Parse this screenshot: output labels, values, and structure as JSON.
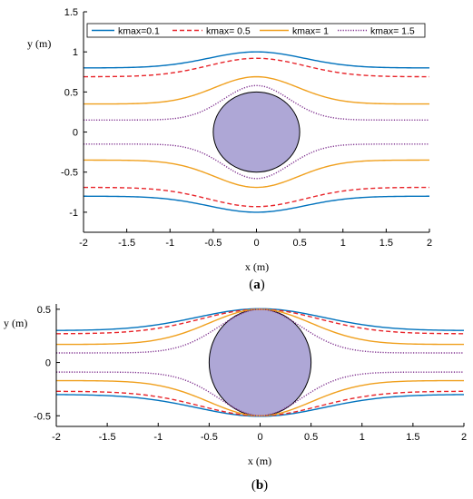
{
  "chart_data": [
    {
      "type": "line",
      "caption_prefix": "(",
      "caption_letter": "a",
      "caption_suffix": ")",
      "xlabel": "x (m)",
      "ylabel": "y (m)",
      "xlim": [
        -2,
        2
      ],
      "ylim": [
        -1.25,
        1.5
      ],
      "xticks": [
        -2,
        -1.5,
        -1,
        -0.5,
        0,
        0.5,
        1,
        1.5,
        2
      ],
      "yticks": [
        -1,
        -0.5,
        0,
        0.5,
        1,
        1.5
      ],
      "legend_position": "top",
      "obstacle": {
        "shape": "circle",
        "center": [
          0,
          0
        ],
        "radius": 0.5,
        "color": "#aea7d6"
      },
      "series": [
        {
          "name": "kmax=0.1",
          "color": "#0072bd",
          "style": "solid",
          "upper": {
            "far": 0.8,
            "peak": 1.0,
            "width": 0.55
          },
          "lower": {
            "far": -0.8,
            "peak": -1.0,
            "width": 0.55
          }
        },
        {
          "name": "kmax= 0.5",
          "color": "#e8252b",
          "style": "dashed",
          "upper": {
            "far": 0.69,
            "peak": 0.92,
            "width": 0.55
          },
          "lower": {
            "far": -0.69,
            "peak": -0.93,
            "width": 0.55
          }
        },
        {
          "name": "kmax= 1",
          "color": "#f0a01e",
          "style": "solid",
          "upper": {
            "far": 0.35,
            "peak": 0.69,
            "width": 0.48
          },
          "lower": {
            "far": -0.35,
            "peak": -0.69,
            "width": 0.48
          }
        },
        {
          "name": "kmax= 1.5",
          "color": "#7e2f8e",
          "style": "dotted",
          "upper": {
            "far": 0.15,
            "peak": 0.58,
            "width": 0.38
          },
          "lower": {
            "far": -0.15,
            "peak": -0.58,
            "width": 0.38
          }
        }
      ]
    },
    {
      "type": "line",
      "caption_prefix": "(",
      "caption_letter": "b",
      "caption_suffix": ")",
      "xlabel": "x (m)",
      "ylabel": "y (m)",
      "xlim": [
        -2,
        2
      ],
      "ylim": [
        -0.6,
        0.55
      ],
      "xticks": [
        -2,
        -1.5,
        -1,
        -0.5,
        0,
        0.5,
        1,
        1.5,
        2
      ],
      "yticks": [
        -0.5,
        0,
        0.5
      ],
      "obstacle": {
        "shape": "circle",
        "center": [
          0,
          0
        ],
        "radius": 0.5,
        "color": "#aea7d6"
      },
      "series": [
        {
          "name": "kmax=0.1",
          "color": "#0072bd",
          "style": "solid",
          "upper": {
            "far": 0.3,
            "peak": 0.505,
            "width": 0.62
          },
          "lower": {
            "far": -0.3,
            "peak": -0.505,
            "width": 0.62
          }
        },
        {
          "name": "kmax= 0.5",
          "color": "#e8252b",
          "style": "dashed",
          "upper": {
            "far": 0.27,
            "peak": 0.5,
            "width": 0.58
          },
          "lower": {
            "far": -0.27,
            "peak": -0.5,
            "width": 0.58
          }
        },
        {
          "name": "kmax= 1",
          "color": "#f0a01e",
          "style": "solid",
          "upper": {
            "far": 0.17,
            "peak": 0.5,
            "width": 0.5
          },
          "lower": {
            "far": -0.17,
            "peak": -0.5,
            "width": 0.5
          }
        },
        {
          "name": "kmax= 1.5",
          "color": "#7e2f8e",
          "style": "dotted",
          "upper": {
            "far": 0.09,
            "peak": 0.5,
            "width": 0.4
          },
          "lower": {
            "far": -0.09,
            "peak": -0.5,
            "width": 0.4
          }
        }
      ]
    }
  ]
}
